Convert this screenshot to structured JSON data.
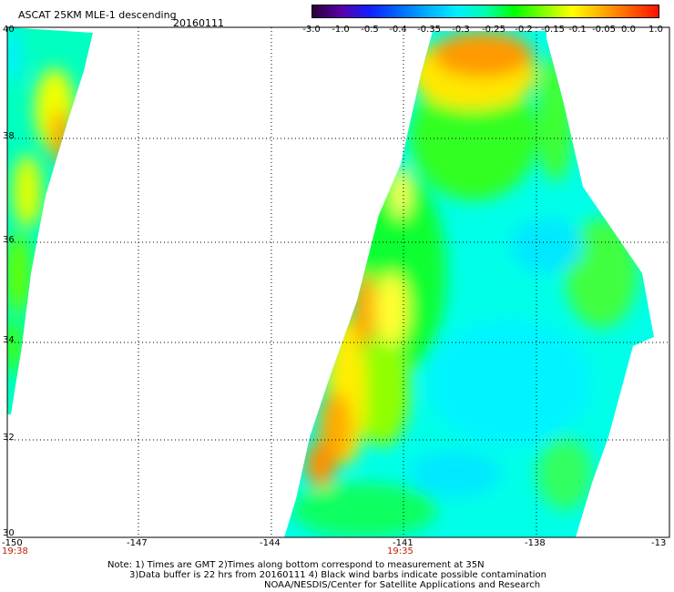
{
  "header": {
    "title": "ASCAT 25KM MLE-1 descending",
    "date": "20160111"
  },
  "colorbar": {
    "ticks": [
      "-3.0",
      "-1.0",
      "-0.5",
      "-0.4",
      "-0.35",
      "-0.3",
      "-0.25",
      "-0.2",
      "-0.15",
      "-0.1",
      "-0.05",
      "0.0",
      "1.0"
    ],
    "colors": [
      "#2a0038",
      "#5a00a8",
      "#1020ff",
      "#0068ff",
      "#00b0ff",
      "#00eeff",
      "#00ffb0",
      "#00ff00",
      "#80ff00",
      "#ffff00",
      "#ffb000",
      "#ff6000",
      "#ff1000"
    ]
  },
  "axes": {
    "lat_ticks": [
      "40",
      "38",
      "36",
      "34",
      "32",
      "30"
    ],
    "lon_ticks": [
      "-150",
      "-147",
      "-144",
      "-141",
      "-138",
      "-13"
    ],
    "time_labels": [
      "19:38",
      "19:35"
    ]
  },
  "notes": [
    "Note: 1) Times are GMT 2)Times along bottom correspond to measurement at 35N",
    "3)Data buffer is 22 hrs from 20160111 4) Black wind barbs indicate possible contamination",
    "NOAA/NESDIS/Center for Satellite Applications and Research"
  ]
}
